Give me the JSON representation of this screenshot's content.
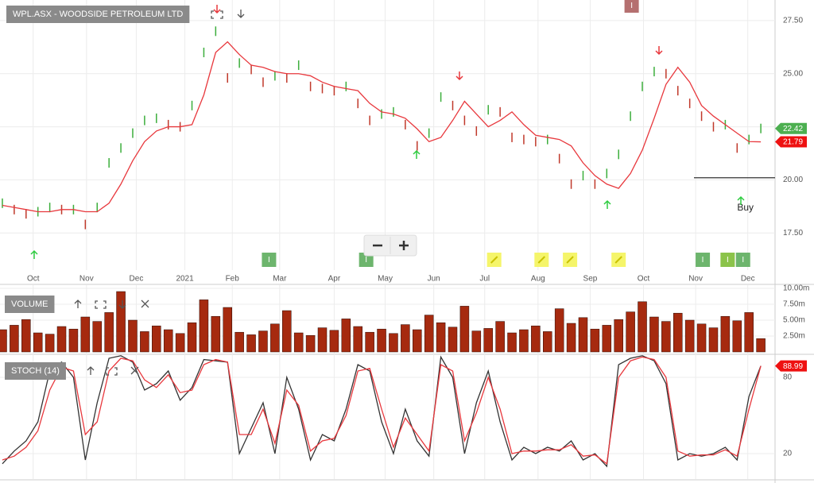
{
  "chart_data": [
    {
      "type": "line",
      "title": "WPL.ASX - WOODSIDE PETROLEUM LTD",
      "x": [
        0,
        1,
        2,
        3,
        4,
        5,
        6,
        7,
        8,
        9,
        10,
        11,
        12,
        13,
        14,
        15,
        16,
        17,
        18,
        19,
        20,
        21,
        22,
        23,
        24,
        25,
        26,
        27,
        28,
        29,
        30,
        31,
        32,
        33,
        34,
        35,
        36,
        37,
        38,
        39,
        40,
        41,
        42,
        43,
        44,
        45,
        46,
        47,
        48,
        49,
        50,
        51,
        52,
        53,
        54,
        55,
        56,
        57,
        58,
        59,
        60,
        61,
        62,
        63,
        64
      ],
      "xlim": [
        -0.2,
        65.2
      ],
      "xticks": [
        {
          "value": 2.6,
          "label": "Oct"
        },
        {
          "value": 7.1,
          "label": "Nov"
        },
        {
          "value": 11.3,
          "label": "Dec"
        },
        {
          "value": 15.4,
          "label": "2021"
        },
        {
          "value": 19.4,
          "label": "Feb"
        },
        {
          "value": 23.4,
          "label": "Mar"
        },
        {
          "value": 28.0,
          "label": "Apr"
        },
        {
          "value": 32.3,
          "label": "May"
        },
        {
          "value": 36.4,
          "label": "Jun"
        },
        {
          "value": 40.7,
          "label": "Jul"
        },
        {
          "value": 45.2,
          "label": "Aug"
        },
        {
          "value": 49.6,
          "label": "Sep"
        },
        {
          "value": 54.1,
          "label": "Oct"
        },
        {
          "value": 58.5,
          "label": "Nov"
        },
        {
          "value": 62.9,
          "label": "Dec"
        }
      ],
      "ylim": [
        15.75,
        28.47
      ],
      "yticks": [
        {
          "value": 17.5,
          "label": "17.50"
        },
        {
          "value": 20,
          "label": "20.00"
        },
        {
          "value": 22.5,
          "label": "22.50"
        },
        {
          "value": 25,
          "label": "25.00"
        },
        {
          "value": 27.5,
          "label": "27.50"
        }
      ],
      "grid": true,
      "series": [
        {
          "style": "ticks",
          "up_color": "#3cae3c",
          "down_color": "#c0392b",
          "tag_color": "#4caf50",
          "values": [
            18.9,
            18.6,
            18.4,
            18.5,
            18.7,
            18.6,
            18.6,
            17.9,
            18.7,
            20.8,
            21.5,
            22.2,
            22.8,
            22.9,
            22.6,
            22.5,
            23.5,
            26.0,
            27.0,
            24.8,
            25.5,
            25.2,
            24.6,
            24.9,
            24.8,
            25.4,
            24.4,
            24.3,
            24.2,
            24.4,
            23.6,
            22.8,
            23.1,
            23.2,
            22.6,
            21.6,
            22.2,
            23.9,
            23.5,
            22.8,
            22.3,
            23.3,
            23.2,
            22.0,
            21.9,
            21.8,
            21.9,
            21.0,
            19.8,
            20.2,
            19.8,
            20.3,
            21.2,
            23.0,
            24.4,
            25.1,
            25.0,
            24.2,
            23.6,
            23.0,
            22.5,
            22.6,
            21.5,
            21.9,
            22.42
          ]
        },
        {
          "style": "line",
          "color": "#e8383d",
          "tag_color": "#ee1111",
          "values": [
            18.8,
            18.7,
            18.6,
            18.5,
            18.5,
            18.6,
            18.6,
            18.5,
            18.5,
            18.9,
            19.8,
            20.9,
            21.8,
            22.3,
            22.5,
            22.5,
            22.6,
            24.0,
            26.0,
            26.5,
            25.9,
            25.4,
            25.3,
            25.1,
            25.0,
            25.0,
            24.9,
            24.6,
            24.4,
            24.3,
            24.2,
            23.6,
            23.2,
            23.1,
            22.9,
            22.4,
            21.8,
            22.0,
            22.8,
            23.7,
            23.1,
            22.5,
            22.8,
            23.2,
            22.6,
            22.1,
            22.0,
            21.9,
            21.6,
            20.8,
            20.2,
            19.8,
            19.6,
            20.3,
            21.4,
            22.9,
            24.5,
            25.3,
            24.6,
            23.5,
            23.0,
            22.6,
            22.2,
            21.8,
            21.79
          ]
        }
      ],
      "hline": 20.1,
      "annotations": [
        {
          "x": 62.7,
          "text": "Buy"
        }
      ],
      "events": [
        {
          "x": 22.5,
          "label": "I",
          "color": "#6db56d"
        },
        {
          "x": 30.7,
          "label": "I",
          "color": "#6db56d"
        },
        {
          "x": 59.1,
          "label": "I",
          "color": "#6db56d"
        },
        {
          "x": 61.2,
          "label": "I",
          "color": "#8bc34a"
        },
        {
          "x": 62.5,
          "label": "I",
          "color": "#6db56d"
        },
        {
          "x": 53.1,
          "label": "I",
          "color": "#b57070"
        }
      ],
      "notes": [
        {
          "x": 41.5,
          "color": "#f5f56a"
        },
        {
          "x": 45.5,
          "color": "#f5f56a"
        },
        {
          "x": 47.9,
          "color": "#f5f56a"
        },
        {
          "x": 52.0,
          "color": "#f5f56a"
        }
      ]
    },
    {
      "type": "bar",
      "title": "VOLUME",
      "color": "#a62a0f",
      "ylim": [
        0,
        10.5
      ],
      "yticks": [
        {
          "value": 2.5,
          "label": "2.50m"
        },
        {
          "value": 5,
          "label": "5.00m"
        },
        {
          "value": 7.5,
          "label": "7.50m"
        },
        {
          "value": 10,
          "label": "10.00m"
        }
      ],
      "grid": true,
      "values": [
        3.5,
        4.2,
        5.1,
        3.0,
        2.8,
        4.0,
        3.6,
        5.5,
        4.8,
        6.2,
        9.5,
        5.0,
        3.2,
        4.1,
        3.5,
        2.9,
        4.6,
        8.2,
        5.6,
        7.0,
        3.1,
        2.7,
        3.3,
        4.4,
        6.5,
        3.0,
        2.6,
        3.8,
        3.4,
        5.2,
        4.0,
        3.1,
        3.6,
        2.9,
        4.3,
        3.5,
        5.8,
        4.6,
        3.9,
        7.2,
        3.3,
        3.7,
        4.8,
        3.0,
        3.5,
        4.1,
        3.2,
        6.8,
        4.5,
        5.4,
        3.6,
        4.2,
        5.1,
        6.3,
        7.9,
        5.5,
        4.8,
        6.1,
        5.0,
        4.4,
        3.8,
        5.6,
        4.9,
        6.2,
        2.1
      ]
    },
    {
      "type": "line",
      "title": "STOCH (14)",
      "ylim": [
        0,
        100
      ],
      "yticks": [
        20,
        80
      ],
      "grid": true,
      "series": [
        {
          "style": "line",
          "color": "#333333",
          "values": [
            12,
            22,
            30,
            45,
            85,
            92,
            80,
            15,
            60,
            95,
            97,
            92,
            70,
            75,
            85,
            62,
            72,
            94,
            93,
            92,
            20,
            40,
            60,
            20,
            80,
            55,
            15,
            35,
            30,
            55,
            90,
            85,
            45,
            20,
            55,
            30,
            18,
            96,
            80,
            20,
            60,
            85,
            45,
            15,
            25,
            20,
            25,
            22,
            30,
            15,
            20,
            10,
            90,
            95,
            97,
            93,
            75,
            15,
            20,
            18,
            20,
            25,
            15,
            65,
            89
          ]
        },
        {
          "style": "line",
          "color": "#e8383d",
          "tag_color": "#ee1111",
          "values": [
            15,
            18,
            25,
            38,
            70,
            88,
            85,
            35,
            45,
            85,
            95,
            93,
            78,
            72,
            82,
            68,
            70,
            90,
            94,
            92,
            35,
            35,
            55,
            28,
            70,
            58,
            22,
            30,
            32,
            50,
            85,
            87,
            55,
            25,
            48,
            35,
            22,
            90,
            85,
            30,
            52,
            80,
            55,
            20,
            22,
            22,
            23,
            23,
            27,
            18,
            19,
            12,
            80,
            93,
            96,
            94,
            80,
            22,
            18,
            19,
            19,
            23,
            18,
            55,
            88.99
          ]
        }
      ]
    }
  ]
}
